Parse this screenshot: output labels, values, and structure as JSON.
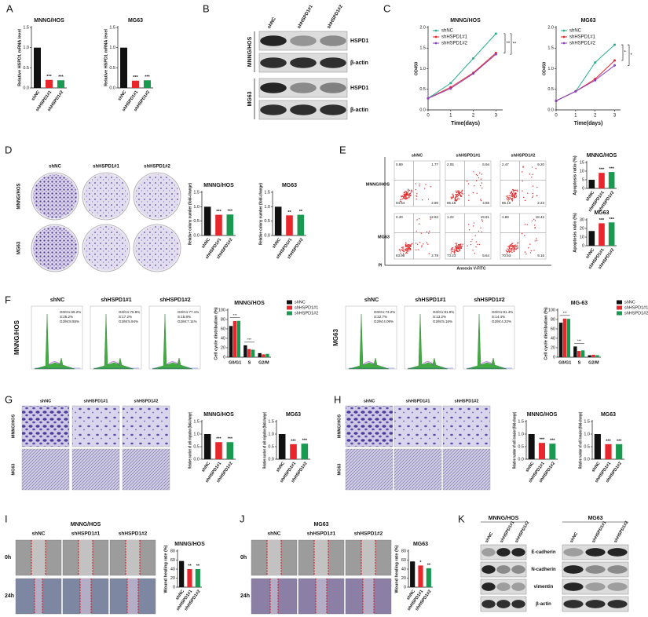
{
  "panel_letters": [
    "A",
    "B",
    "C",
    "D",
    "E",
    "F",
    "G",
    "H",
    "I",
    "J",
    "K"
  ],
  "chart_data": [
    {
      "type": "bar",
      "title": "MNNG/HOS",
      "ylabel": "Relative HSPD1 mRNA level",
      "categories": [
        "shNC",
        "shHSPD1#1",
        "shHSPD1#2"
      ],
      "values": [
        1.0,
        0.2,
        0.19
      ],
      "colors": [
        "#111111",
        "#e8262b",
        "#1a9a50"
      ],
      "ylim": [
        0,
        1.5
      ],
      "yticks": [
        {
          "value": 0,
          "label": "0.0"
        },
        0.5,
        {
          "value": 1,
          "label": "1.0"
        },
        1.5
      ],
      "sig_labels": [
        null,
        "***",
        "***"
      ]
    },
    {
      "type": "bar",
      "title": "MG63",
      "ylabel": "Relative HSPD1 mRNA level",
      "categories": [
        "shNC",
        "shHSPD1#1",
        "shHSPD1#2"
      ],
      "values": [
        1.0,
        0.18,
        0.19
      ],
      "colors": [
        "#111111",
        "#e8262b",
        "#1a9a50"
      ],
      "ylim": [
        0,
        1.5
      ],
      "yticks": [
        {
          "value": 0,
          "label": "0.0"
        },
        0.5,
        {
          "value": 1,
          "label": "1.0"
        },
        1.5
      ],
      "sig_labels": [
        null,
        "***",
        "***"
      ]
    },
    {
      "type": "line",
      "title": "MNNG/HOS",
      "xlabel": "Time(days)",
      "ylabel": "OD450",
      "x": [
        0,
        1,
        2,
        3
      ],
      "xlim": [
        0,
        3.3
      ],
      "xticks": [
        0,
        1,
        2,
        3
      ],
      "ylim": [
        0,
        2
      ],
      "yticks": [
        {
          "value": 0,
          "label": "0.0"
        },
        0.5,
        {
          "value": 1,
          "label": "1.0"
        },
        1.5,
        {
          "value": 2,
          "label": "2.0"
        }
      ],
      "legend": "top-left",
      "series": [
        {
          "name": "shNC",
          "color": "#2aae8f",
          "values": [
            0.28,
            0.65,
            1.25,
            1.85
          ]
        },
        {
          "name": "shHSPD1#1",
          "color": "#e8262b",
          "values": [
            0.28,
            0.55,
            0.9,
            1.38
          ]
        },
        {
          "name": "shHSPD1#2",
          "color": "#8a3fbf",
          "values": [
            0.28,
            0.52,
            0.88,
            1.35
          ]
        }
      ],
      "annotations": [
        "**",
        "**"
      ]
    },
    {
      "type": "line",
      "title": "MG63",
      "xlabel": "Time(days)",
      "ylabel": "OD450",
      "x": [
        0,
        1,
        2,
        3
      ],
      "xlim": [
        0,
        3.3
      ],
      "xticks": [
        0,
        1,
        2,
        3
      ],
      "ylim": [
        0,
        2
      ],
      "yticks": [
        {
          "value": 0,
          "label": "0.0"
        },
        0.5,
        {
          "value": 1,
          "label": "1.0"
        },
        1.5,
        {
          "value": 2,
          "label": "2.0"
        }
      ],
      "legend": "top-left",
      "series": [
        {
          "name": "shNC",
          "color": "#2aae8f",
          "values": [
            0.22,
            0.45,
            1.15,
            1.58
          ]
        },
        {
          "name": "shHSPD1#1",
          "color": "#e8262b",
          "values": [
            0.22,
            0.45,
            0.75,
            1.2
          ]
        },
        {
          "name": "shHSPD1#2",
          "color": "#8a3fbf",
          "values": [
            0.22,
            0.45,
            0.72,
            1.08
          ]
        }
      ],
      "annotations": [
        "*",
        "*"
      ]
    },
    {
      "type": "bar",
      "title": "MNNG/HOS",
      "ylabel": "Relative colony number (fold-change)",
      "categories": [
        "shNC",
        "shHSPD1#1",
        "shHSPD1#2"
      ],
      "values": [
        1.0,
        0.72,
        0.73
      ],
      "colors": [
        "#111111",
        "#e8262b",
        "#1a9a50"
      ],
      "ylim": [
        0,
        1.5
      ],
      "yticks": [
        {
          "value": 0,
          "label": "0.0"
        },
        0.5,
        {
          "value": 1,
          "label": "1.0"
        },
        1.5
      ],
      "sig_labels": [
        null,
        "***",
        "***"
      ]
    },
    {
      "type": "bar",
      "title": "MG63",
      "ylabel": "Relative colony number (fold-change)",
      "categories": [
        "shNC",
        "shHSPD1#1",
        "shHSPD1#2"
      ],
      "values": [
        1.0,
        0.7,
        0.72
      ],
      "colors": [
        "#111111",
        "#e8262b",
        "#1a9a50"
      ],
      "ylim": [
        0,
        1.5
      ],
      "yticks": [
        {
          "value": 0,
          "label": "0.0"
        },
        0.5,
        {
          "value": 1,
          "label": "1.0"
        },
        1.5
      ],
      "sig_labels": [
        null,
        "**",
        "**"
      ]
    },
    {
      "type": "bar",
      "title": "MNNG/HOS",
      "ylabel": "Apoptosis ratio (%)",
      "categories": [
        "shNC",
        "shHSPD1#1",
        "shHSPD1#2"
      ],
      "values": [
        5,
        9,
        9.5
      ],
      "colors": [
        "#111111",
        "#e8262b",
        "#1a9a50"
      ],
      "ylim": [
        0,
        15
      ],
      "yticks": [
        0,
        5,
        10,
        15
      ],
      "sig_labels": [
        null,
        "***",
        "***"
      ]
    },
    {
      "type": "bar",
      "title": "MG63",
      "ylabel": "Apoptosis ratio (%)",
      "categories": [
        "shNC",
        "shHSPD1#1",
        "shHSPD1#2"
      ],
      "values": [
        17,
        26,
        27
      ],
      "colors": [
        "#111111",
        "#e8262b",
        "#1a9a50"
      ],
      "ylim": [
        0,
        30
      ],
      "yticks": [
        0,
        10,
        20,
        30
      ],
      "sig_labels": [
        null,
        "***",
        "***"
      ]
    },
    {
      "type": "bar",
      "title": "MNNG/HOS",
      "ylabel": "Cell cycle distribution (%)",
      "categories": [
        "G0/G1",
        "S",
        "G2/M"
      ],
      "series": [
        {
          "name": "shNC",
          "color": "#111111",
          "values": [
            66.2,
            25.2,
            8.55
          ]
        },
        {
          "name": "shHSPD1#1",
          "color": "#e8262b",
          "values": [
            76.8,
            17.2,
            5.94
          ]
        },
        {
          "name": "shHSPD1#2",
          "color": "#1a9a50",
          "values": [
            77.1,
            15.8,
            7.11
          ]
        }
      ],
      "ylim": [
        0,
        100
      ],
      "yticks": [
        0,
        20,
        40,
        60,
        80,
        100
      ],
      "legend": "top-right",
      "sig_labels": [
        "***",
        "***",
        null
      ]
    },
    {
      "type": "bar",
      "title": "MG-63",
      "ylabel": "Cell cycle distribution (%)",
      "categories": [
        "G0/G1",
        "S",
        "G2/M"
      ],
      "series": [
        {
          "name": "shNC",
          "color": "#111111",
          "values": [
            73.2,
            22.7,
            4.09
          ]
        },
        {
          "name": "shHSPD1#1",
          "color": "#e8262b",
          "values": [
            81.9,
            13.2,
            5.16
          ]
        },
        {
          "name": "shHSPD1#2",
          "color": "#1a9a50",
          "values": [
            81.4,
            14.4,
            4.22
          ]
        }
      ],
      "ylim": [
        0,
        100
      ],
      "yticks": [
        0,
        20,
        40,
        60,
        80,
        100
      ],
      "legend": "top-right",
      "sig_labels": [
        "***",
        "***",
        null
      ]
    },
    {
      "type": "bar",
      "title": "MNNG/HOS",
      "ylabel": "Relative number of cell migration (fold-change)",
      "categories": [
        "shNC",
        "shHSPD1#1",
        "shHSPD1#2"
      ],
      "values": [
        1.0,
        0.68,
        0.68
      ],
      "colors": [
        "#111111",
        "#e8262b",
        "#1a9a50"
      ],
      "ylim": [
        0,
        1.5
      ],
      "yticks": [
        {
          "value": 0,
          "label": "0.0"
        },
        0.5,
        {
          "value": 1,
          "label": "1.0"
        },
        1.5
      ],
      "sig_labels": [
        null,
        "***",
        "***"
      ]
    },
    {
      "type": "bar",
      "title": "MG63",
      "ylabel": "Relative number of cell migration (fold-change)",
      "categories": [
        "shNC",
        "shHSPD1#1",
        "shHSPD1#2"
      ],
      "values": [
        1.0,
        0.6,
        0.62
      ],
      "colors": [
        "#111111",
        "#e8262b",
        "#1a9a50"
      ],
      "ylim": [
        0,
        1.5
      ],
      "yticks": [
        {
          "value": 0,
          "label": "0.0"
        },
        0.5,
        {
          "value": 1,
          "label": "1.0"
        },
        1.5
      ],
      "sig_labels": [
        null,
        "***",
        "***"
      ]
    },
    {
      "type": "bar",
      "title": "MNNG/HOS",
      "ylabel": "Relative number of cell invasion (fold-change)",
      "categories": [
        "shNC",
        "shHSPD1#1",
        "shHSPD1#2"
      ],
      "values": [
        1.0,
        0.65,
        0.62
      ],
      "colors": [
        "#111111",
        "#e8262b",
        "#1a9a50"
      ],
      "ylim": [
        0,
        1.5
      ],
      "yticks": [
        {
          "value": 0,
          "label": "0.0"
        },
        0.5,
        {
          "value": 1,
          "label": "1.0"
        },
        1.5
      ],
      "sig_labels": [
        null,
        "***",
        "***"
      ]
    },
    {
      "type": "bar",
      "title": "MG63",
      "ylabel": "Relative number of cell invasion (fold-change)",
      "categories": [
        "shNC",
        "shHSPD1#1",
        "shHSPD1#2"
      ],
      "values": [
        1.0,
        0.6,
        0.6
      ],
      "colors": [
        "#111111",
        "#e8262b",
        "#1a9a50"
      ],
      "ylim": [
        0,
        1.5
      ],
      "yticks": [
        {
          "value": 0,
          "label": "0.0"
        },
        0.5,
        {
          "value": 1,
          "label": "1.0"
        },
        1.5
      ],
      "sig_labels": [
        null,
        "***",
        "***"
      ]
    },
    {
      "type": "bar",
      "title": "MNNG/HOS",
      "ylabel": "Wound healing rate (%)",
      "categories": [
        "shNC",
        "shHSPD1#1",
        "shHSPD1#2"
      ],
      "values": [
        58,
        40,
        40
      ],
      "colors": [
        "#111111",
        "#e8262b",
        "#1a9a50"
      ],
      "ylim": [
        0,
        80
      ],
      "yticks": [
        0,
        20,
        40,
        60,
        80
      ],
      "sig_labels": [
        null,
        "**",
        "**"
      ]
    },
    {
      "type": "bar",
      "title": "MG63",
      "ylabel": "Wound healing rate (%)",
      "categories": [
        "shNC",
        "shHSPD1#1",
        "shHSPD1#2"
      ],
      "values": [
        57,
        48,
        42
      ],
      "colors": [
        "#111111",
        "#e8262b",
        "#1a9a50"
      ],
      "ylim": [
        0,
        80
      ],
      "yticks": [
        0,
        20,
        40,
        60,
        80
      ],
      "sig_labels": [
        null,
        "*",
        "**"
      ]
    }
  ],
  "B": {
    "lanes": [
      "shNC",
      "shHSPD1#1",
      "shHSPD1#2"
    ],
    "cell_lines": [
      "MNNG/HOS",
      "MG63"
    ],
    "bands": [
      "HSPD1",
      "β-actin",
      "HSPD1",
      "β-actin"
    ]
  },
  "D": {
    "columns": [
      "shNC",
      "shHSPD1#1",
      "shHSPD1#2"
    ],
    "rows": [
      "MNNG/HOS",
      "MG63"
    ]
  },
  "E": {
    "columns": [
      "shNC",
      "shHSPD1#1",
      "shHSPD1#2"
    ],
    "rows": [
      "MNNG/HOS",
      "MG63"
    ],
    "xlabel": "Annexin V-FITC",
    "ylabel": "PI",
    "quadrants": [
      [
        "0.89",
        "1.77",
        "94.54",
        "2.80"
      ],
      [
        "2.05",
        "6.94",
        "86.16",
        "4.85"
      ],
      [
        "2.47",
        "9.20",
        "86.10",
        "2.23"
      ],
      [
        "0.40",
        "12.84",
        "83.98",
        "2.78"
      ],
      [
        "1.22",
        "19.91",
        "73.23",
        "5.64"
      ],
      [
        "1.89",
        "18.42",
        "70.53",
        "9.16"
      ]
    ]
  },
  "F": [
    {
      "row": "MNNG/HOS",
      "columns": [
        "shNC",
        "shHSPD1#1",
        "shHSPD1#2"
      ],
      "stats": [
        [
          "G0/G1:66.2%",
          "S:25.2%",
          "G2/M:8.55%"
        ],
        [
          "G0/G1:76.8%",
          "S:17.2%",
          "G2/M:5.94%"
        ],
        [
          "G0/G1:77.1%",
          "S:15.8%",
          "G2/M:7.11%"
        ]
      ]
    },
    {
      "row": "MG63",
      "columns": [
        "shNC",
        "shHSPD1#1",
        "shHSPD1#2"
      ],
      "stats": [
        [
          "G0/G1:73.2%",
          "S:22.7%",
          "G2/M:4.09%"
        ],
        [
          "G0/G1:81.9%",
          "S:13.2%",
          "G2/M:5.16%"
        ],
        [
          "G0/G1:81.4%",
          "S:14.4%",
          "G2/M:4.22%"
        ]
      ]
    }
  ],
  "G": {
    "columns": [
      "shNC",
      "shHSPD1#1",
      "shHSPD1#2"
    ],
    "rows": [
      "MNNG/HOS",
      "MG63"
    ]
  },
  "H": {
    "columns": [
      "shNC",
      "shHSPD1#1",
      "shHSPD1#2"
    ],
    "rows": [
      "MNNG/HOS",
      "MG63"
    ]
  },
  "I": {
    "title": "MNNG/HOS",
    "columns": [
      "shNC",
      "shHSPD1#1",
      "shHSPD1#2"
    ],
    "rows": [
      "0h",
      "24h"
    ]
  },
  "J": {
    "title": "MG63",
    "columns": [
      "shNC",
      "shHSPD1#1",
      "shHSPD1#2"
    ],
    "rows": [
      "0h",
      "24h"
    ]
  },
  "K": {
    "cell_lines": [
      "MNNG/HOS",
      "MG63"
    ],
    "lanes": [
      "shNC",
      "shHSPD1#1",
      "shHSPD1#2"
    ],
    "bands": [
      "E-cadherin",
      "N-cadherin",
      "vimentin",
      "β-actin"
    ]
  }
}
